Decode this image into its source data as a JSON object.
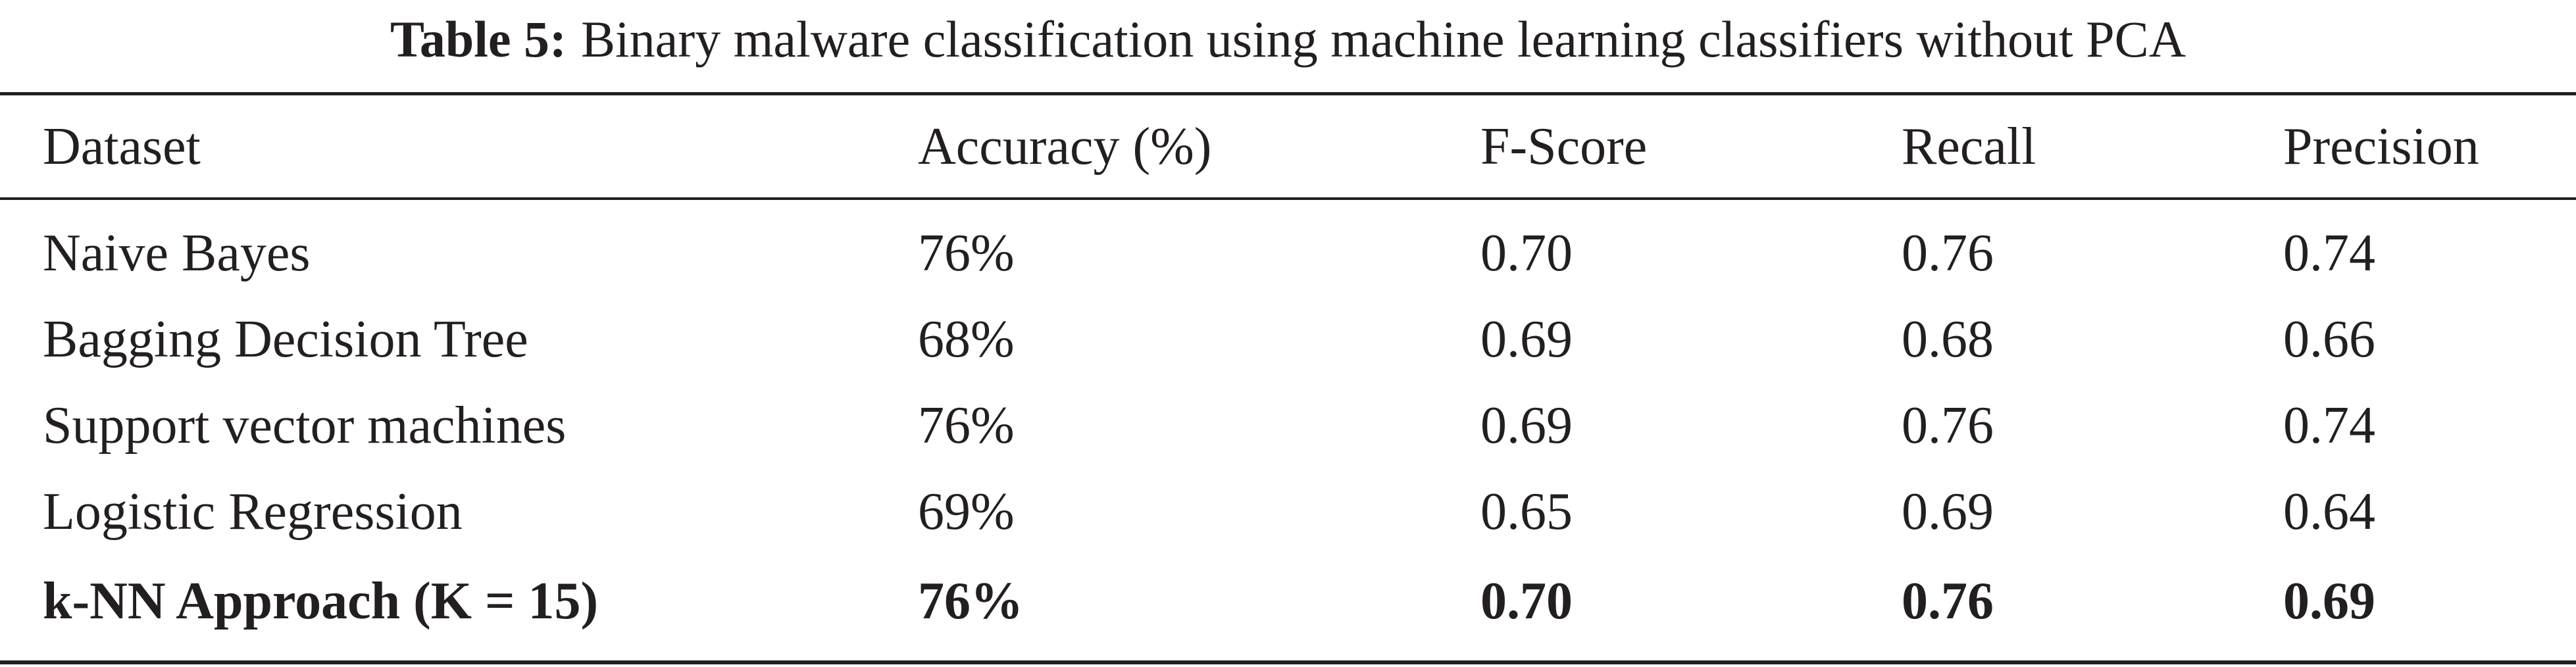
{
  "caption": {
    "label": "Table 5:",
    "text": "Binary malware classification using machine learning classifiers without PCA"
  },
  "table": {
    "headers": [
      "Dataset",
      "Accuracy (%)",
      "F-Score",
      "Recall",
      "Precision"
    ],
    "rows": [
      [
        "Naive Bayes",
        "76%",
        "0.70",
        "0.76",
        "0.74"
      ],
      [
        "Bagging Decision Tree",
        "68%",
        "0.69",
        "0.68",
        "0.66"
      ],
      [
        "Support vector machines",
        "76%",
        "0.69",
        "0.76",
        "0.74"
      ],
      [
        "Logistic Regression",
        "69%",
        "0.65",
        "0.69",
        "0.64"
      ],
      [
        "k-NN Approach (K = 15)",
        "76%",
        "0.70",
        "0.76",
        "0.69"
      ]
    ],
    "bold_row": 4
  }
}
